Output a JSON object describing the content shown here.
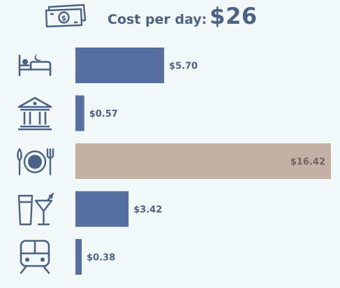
{
  "header": {
    "title_label": "Cost per day:",
    "title_value": "$26",
    "icon": "money-icon"
  },
  "colors": {
    "bar": "#5570a0",
    "highlight": "#c2b1a4",
    "icon": "#4b6286",
    "label": "#4b6286",
    "highlight_label": "#6e6460"
  },
  "chart_data": {
    "type": "bar",
    "orientation": "horizontal",
    "title": "Cost per day: $26",
    "categories": [
      "accommodation",
      "attractions",
      "food",
      "drinks",
      "transport"
    ],
    "icons": [
      "bed-icon",
      "museum-icon",
      "dining-icon",
      "drinks-icon",
      "train-icon"
    ],
    "values": [
      5.7,
      0.57,
      16.42,
      3.42,
      0.38
    ],
    "labels": [
      "$5.70",
      "$0.57",
      "$16.42",
      "$3.42",
      "$0.38"
    ],
    "highlight": "food",
    "grid": false
  }
}
